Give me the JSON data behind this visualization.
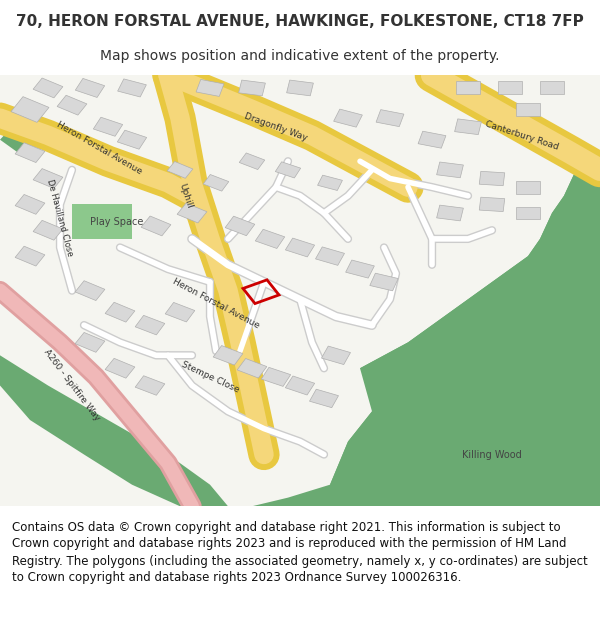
{
  "title_line1": "70, HERON FORSTAL AVENUE, HAWKINGE, FOLKESTONE, CT18 7FP",
  "title_line2": "Map shows position and indicative extent of the property.",
  "copyright_text": "Contains OS data © Crown copyright and database right 2021. This information is subject to Crown copyright and database rights 2023 and is reproduced with the permission of HM Land Registry. The polygons (including the associated geometry, namely x, y co-ordinates) are subject to Crown copyright and database rights 2023 Ordnance Survey 100026316.",
  "bg_color": "#ffffff",
  "map_bg": "#f5f5f0",
  "road_yellow": "#f5d77a",
  "road_yellow_border": "#e8c840",
  "road_white": "#ffffff",
  "road_gray": "#d0d0d0",
  "building_color": "#d8d8d8",
  "building_edge": "#b0b0b0",
  "green_area": "#6aaa72",
  "play_space": "#8cc88c",
  "road_pink": "#f0b8b8",
  "road_pink_dark": "#e89898",
  "highlight_color": "#cc0000",
  "text_color": "#333333",
  "title_fontsize": 11,
  "subtitle_fontsize": 10,
  "copyright_fontsize": 8.5
}
